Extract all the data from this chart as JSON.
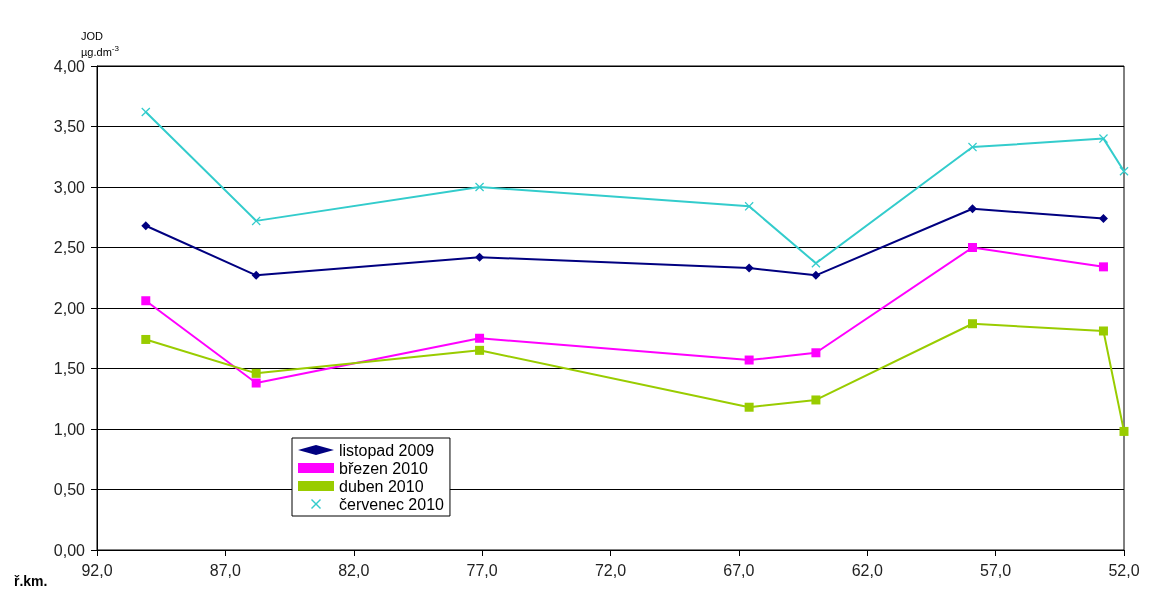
{
  "chart_data": {
    "type": "line",
    "ylabel": "JOD\nµg.dm$^{-3}$",
    "xlabel": "ř.km.",
    "xlim": [
      92,
      52
    ],
    "xticks": [
      {
        "value": 92,
        "label": "92,0"
      },
      {
        "value": 87,
        "label": "87,0"
      },
      {
        "value": 82,
        "label": "82,0"
      },
      {
        "value": 77,
        "label": "77,0"
      },
      {
        "value": 72,
        "label": "72,0"
      },
      {
        "value": 67,
        "label": "67,0"
      },
      {
        "value": 62,
        "label": "62,0"
      },
      {
        "value": 57,
        "label": "57,0"
      },
      {
        "value": 52,
        "label": "52,0"
      }
    ],
    "ylim": [
      0,
      4
    ],
    "yticks": [
      {
        "value": 0,
        "label": "0,00"
      },
      {
        "value": 0.5,
        "label": "0,50"
      },
      {
        "value": 1,
        "label": "1,00"
      },
      {
        "value": 1.5,
        "label": "1,50"
      },
      {
        "value": 2,
        "label": "2,00"
      },
      {
        "value": 2.5,
        "label": "2,50"
      },
      {
        "value": 3,
        "label": "3,00"
      },
      {
        "value": 3.5,
        "label": "3,50"
      },
      {
        "value": 4,
        "label": "4,00"
      }
    ],
    "grid": "y",
    "legend": "bottom left",
    "line_style": "solid",
    "series": [
      {
        "name": "listopad 2009",
        "color": "#000080",
        "marker": "diamond",
        "x": [
          90.1,
          85.8,
          77.1,
          66.6,
          64.0,
          57.9,
          52.8
        ],
        "values": [
          2.68,
          2.27,
          2.42,
          2.33,
          2.27,
          2.82,
          2.74
        ]
      },
      {
        "name": "březen 2010",
        "color": "#ff00ff",
        "marker": "square",
        "x": [
          90.1,
          85.8,
          77.1,
          66.6,
          64.0,
          57.9,
          52.8
        ],
        "values": [
          2.06,
          1.38,
          1.75,
          1.57,
          1.63,
          2.5,
          2.34
        ]
      },
      {
        "name": "duben 2010",
        "color": "#99cc00",
        "marker": "square",
        "x": [
          90.1,
          85.8,
          77.1,
          66.6,
          64.0,
          57.9,
          52.8,
          52.0
        ],
        "values": [
          1.74,
          1.46,
          1.65,
          1.18,
          1.24,
          1.87,
          1.81,
          0.98
        ]
      },
      {
        "name": "červenec 2010",
        "color": "#33cccc",
        "marker": "cross",
        "x": [
          90.1,
          85.8,
          77.1,
          66.6,
          64.0,
          57.9,
          52.8,
          52.0
        ],
        "values": [
          3.62,
          2.72,
          3.0,
          2.84,
          2.37,
          3.33,
          3.4,
          3.13
        ]
      }
    ]
  }
}
